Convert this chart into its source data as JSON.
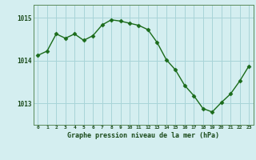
{
  "x": [
    0,
    1,
    2,
    3,
    4,
    5,
    6,
    7,
    8,
    9,
    10,
    11,
    12,
    13,
    14,
    15,
    16,
    17,
    18,
    19,
    20,
    21,
    22,
    23
  ],
  "y": [
    1014.12,
    1014.22,
    1014.62,
    1014.52,
    1014.62,
    1014.47,
    1014.58,
    1014.83,
    1014.95,
    1014.92,
    1014.87,
    1014.82,
    1014.72,
    1014.42,
    1014.02,
    1013.78,
    1013.42,
    1013.18,
    1012.88,
    1012.8,
    1013.02,
    1013.22,
    1013.52,
    1013.87
  ],
  "line_color": "#1a6b1a",
  "marker": "D",
  "marker_size": 2.5,
  "bg_color": "#d4eef0",
  "grid_color": "#a8d4d8",
  "tick_label_color": "#1a4a1a",
  "title": "Graphe pression niveau de la mer (hPa)",
  "ylabel_ticks": [
    1013,
    1014,
    1015
  ],
  "xlim": [
    -0.5,
    23.5
  ],
  "ylim": [
    1012.5,
    1015.3
  ],
  "figsize": [
    3.2,
    2.0
  ],
  "dpi": 100
}
